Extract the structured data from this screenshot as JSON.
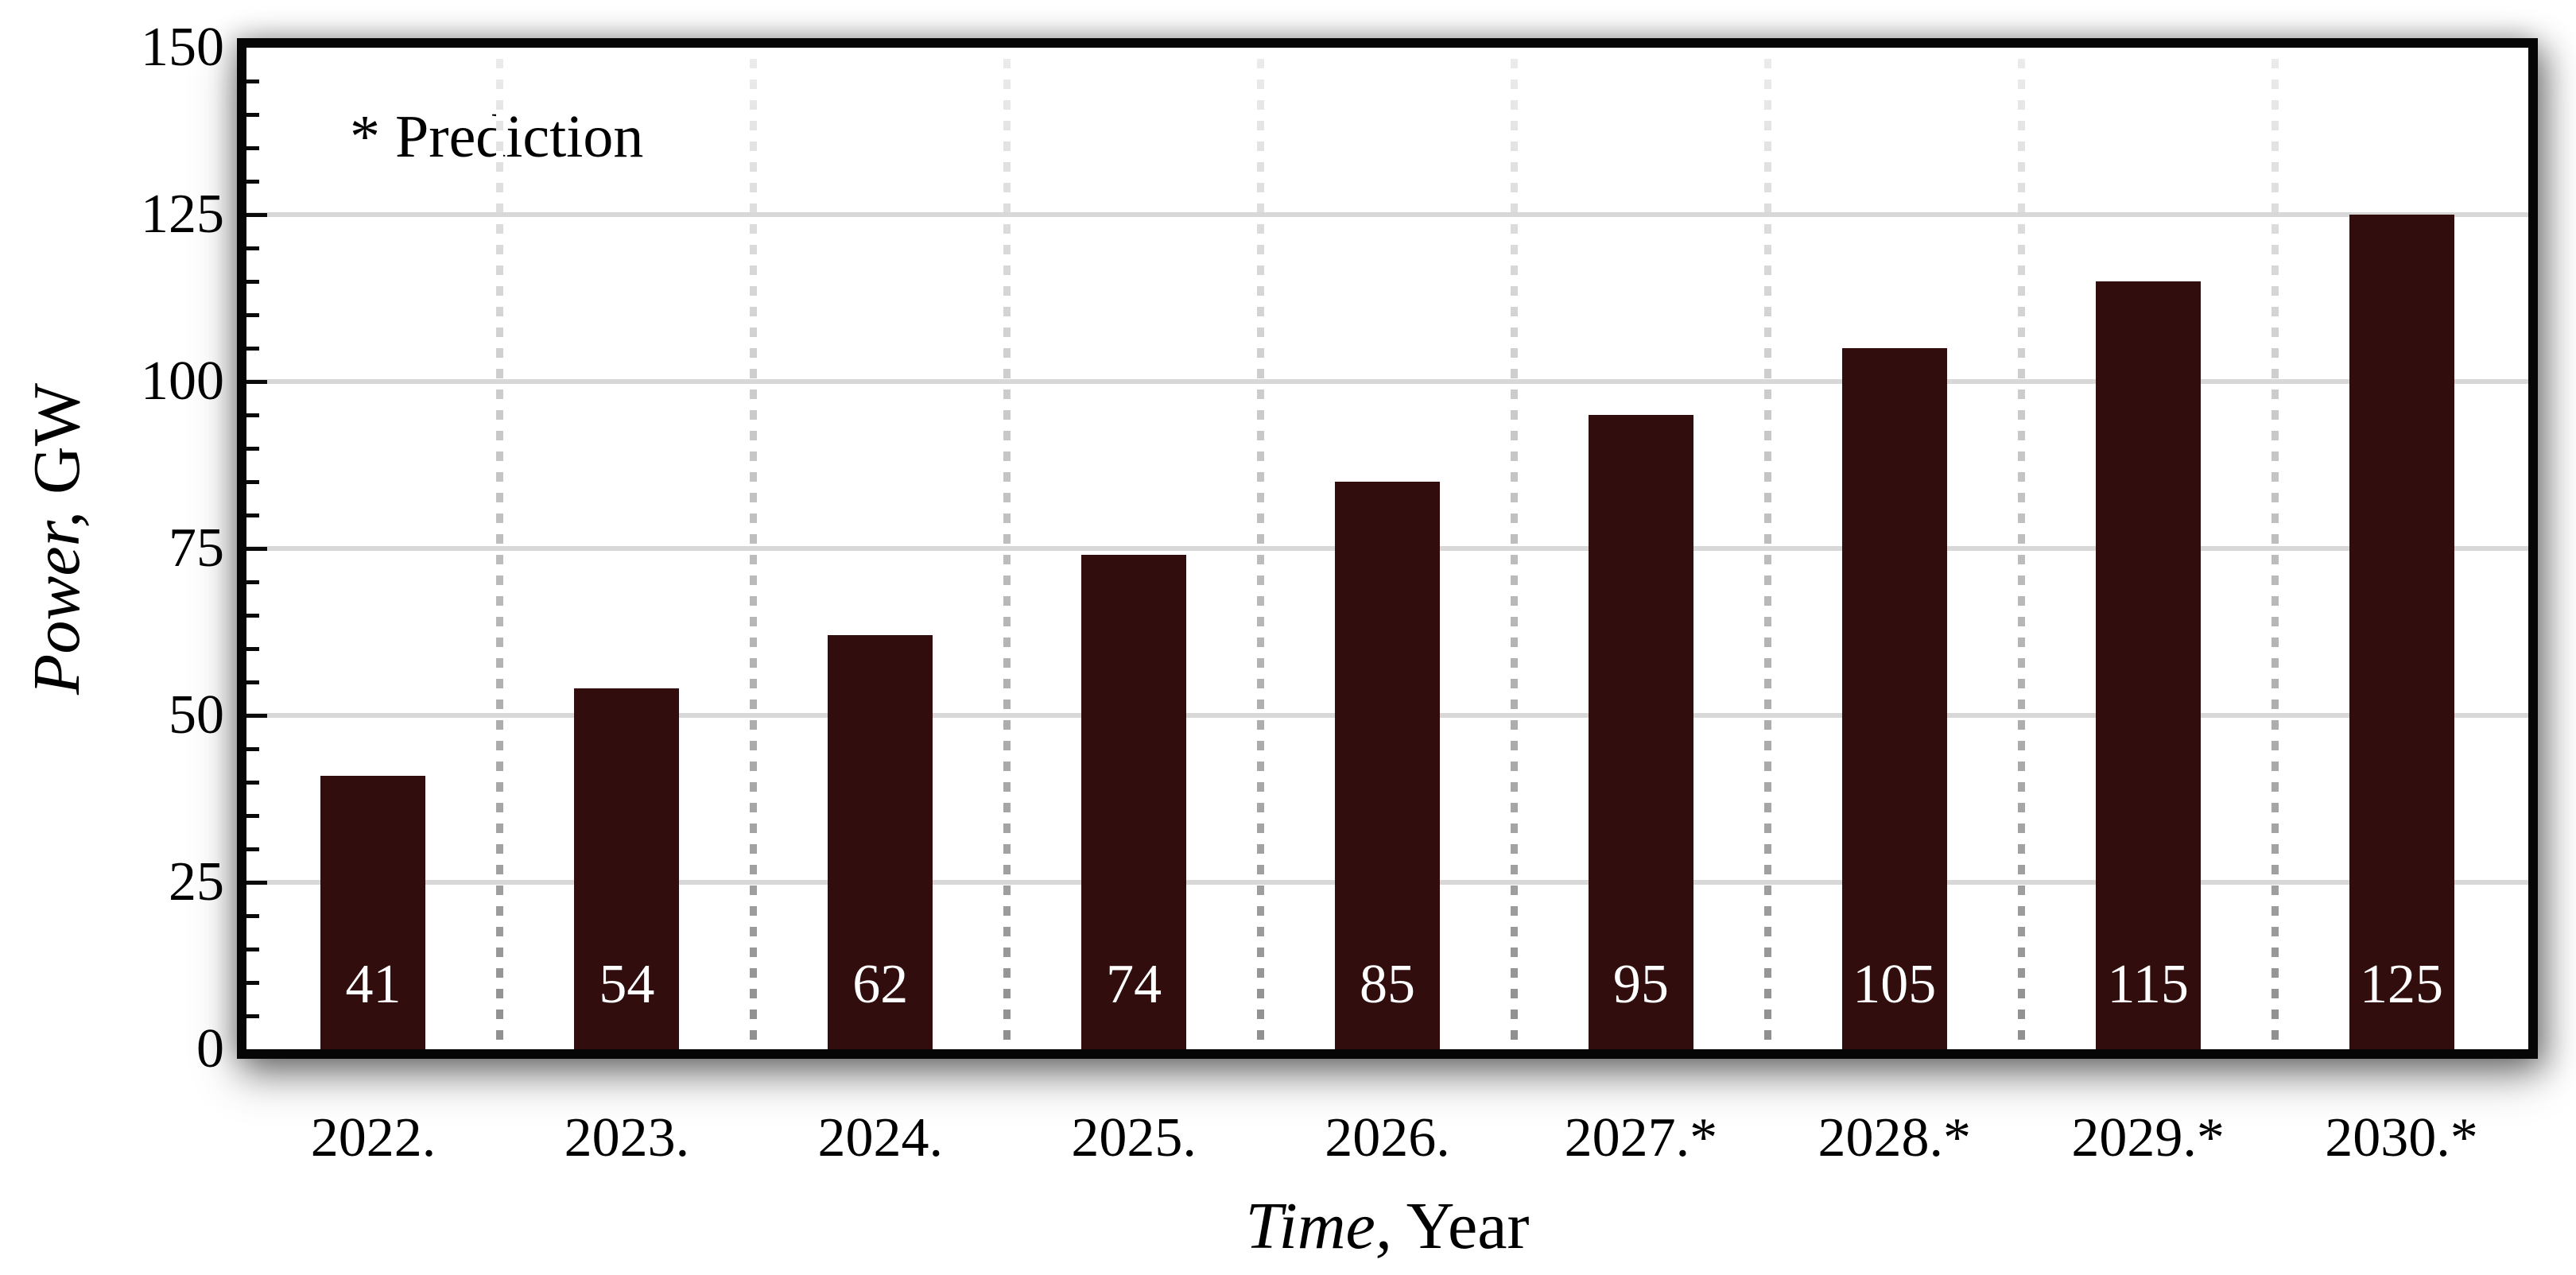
{
  "chart_data": {
    "type": "bar",
    "categories": [
      "2022.",
      "2023.",
      "2024.",
      "2025.",
      "2026.",
      "2027.*",
      "2028.*",
      "2029.*",
      "2030.*"
    ],
    "values": [
      41,
      54,
      62,
      74,
      85,
      95,
      105,
      115,
      125
    ],
    "title": "",
    "xlabel_italic": "Time,",
    "xlabel_regular": " Year",
    "ylabel_italic": "Power,",
    "ylabel_regular": " GW",
    "annotation": "* Prediction",
    "ylim": [
      0,
      150
    ],
    "yticks": [
      0,
      25,
      50,
      75,
      100,
      125,
      150
    ],
    "minor_tick_step": 5,
    "legend": "none",
    "grid": "horizontal solid lines at 25-unit steps; vertical dashed separators between year slots, fading toward top",
    "colors": {
      "bar": "#310d0d",
      "bar_label": "#ffffff",
      "hgrid": "#d8d8d8",
      "vsep_bottom": "#8f8f8f",
      "vsep_top": "#ececec",
      "frame": "#060606",
      "text": "#000000",
      "background": "#ffffff"
    }
  }
}
